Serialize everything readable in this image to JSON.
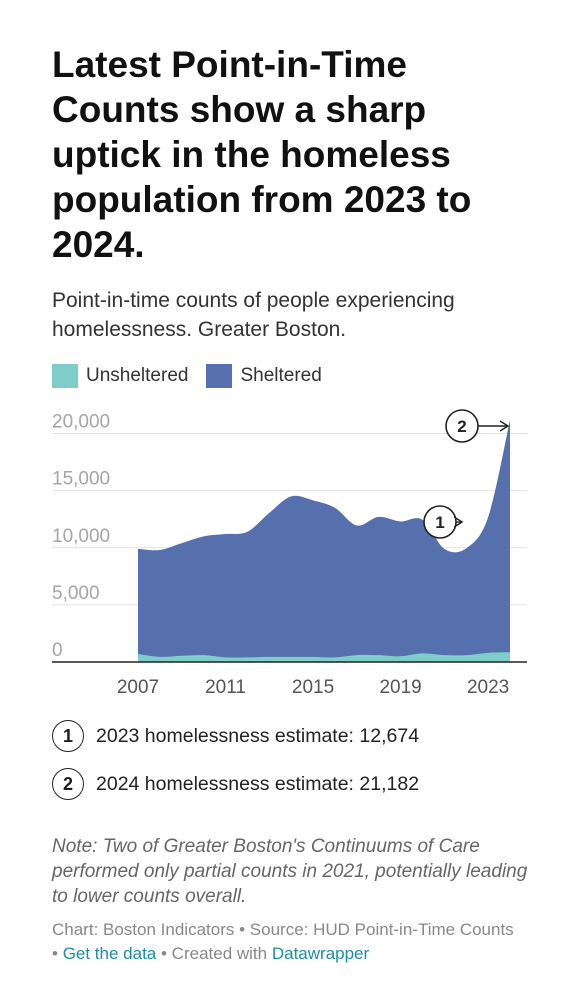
{
  "title": "Latest Point-in-Time Counts show a sharp uptick in the homeless population from 2023 to 2024.",
  "subtitle": "Point-in-time counts of people experiencing homelessness. Greater Boston.",
  "legend": [
    {
      "label": "Unsheltered",
      "color": "#7fcdc9"
    },
    {
      "label": "Sheltered",
      "color": "#566fad"
    }
  ],
  "chart_data": {
    "type": "area",
    "stacked": true,
    "x": [
      2007,
      2008,
      2009,
      2010,
      2011,
      2012,
      2013,
      2014,
      2015,
      2016,
      2017,
      2018,
      2019,
      2020,
      2021,
      2022,
      2023,
      2024
    ],
    "series": [
      {
        "name": "Unsheltered",
        "color": "#7fcdc9",
        "values": [
          700,
          450,
          550,
          600,
          400,
          400,
          450,
          450,
          450,
          400,
          600,
          600,
          500,
          750,
          600,
          600,
          800,
          850
        ]
      },
      {
        "name": "Sheltered",
        "color": "#566fad",
        "values": [
          9200,
          9350,
          9850,
          10400,
          10800,
          11000,
          12600,
          14050,
          13700,
          13100,
          11350,
          12100,
          11800,
          11700,
          9300,
          9350,
          11874,
          20332
        ]
      }
    ],
    "ylim": [
      0,
      21182
    ],
    "yticks": [
      "20,000",
      "15,000",
      "10,000",
      "5,000",
      "0"
    ],
    "ytick_values": [
      20000,
      15000,
      10000,
      5000,
      0
    ],
    "xticks": [
      "2007",
      "2011",
      "2015",
      "2019",
      "2023"
    ],
    "xtick_values": [
      2007,
      2011,
      2015,
      2019,
      2023
    ],
    "annotations": [
      {
        "label": "1",
        "text": "2023 homelessness estimate: 12,674",
        "year": 2023,
        "value": 12674
      },
      {
        "label": "2",
        "text": "2024 homelessness estimate:  21,182",
        "year": 2024,
        "value": 21182
      }
    ]
  },
  "note": "Note: Two of Greater Boston's Continuums of Care performed only partial counts in 2021, potentially leading to lower counts overall.",
  "credits": {
    "chart": "Chart: Boston Indicators",
    "source": "Source: HUD Point-in-Time Counts",
    "get_data": "Get the data",
    "created_with": "Created with",
    "tool": "Datawrapper",
    "sep": " • "
  }
}
